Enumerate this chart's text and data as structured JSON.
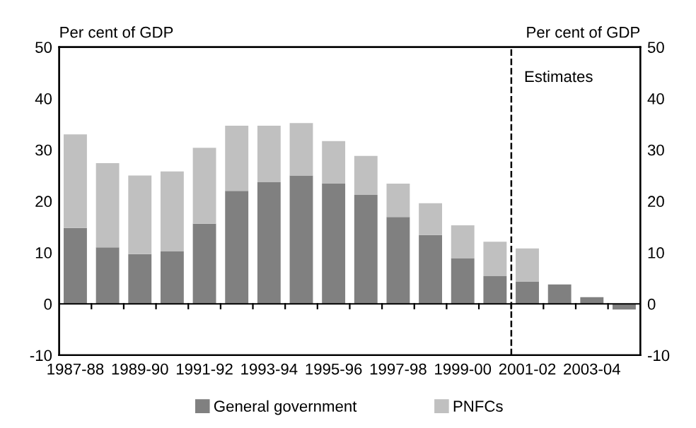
{
  "chart_data": {
    "type": "bar",
    "stacked": true,
    "ylabel": "Per cent of GDP",
    "y2label": "Per cent of GDP",
    "categories": [
      "1987-88",
      null,
      "1989-90",
      null,
      "1991-92",
      null,
      "1993-94",
      null,
      "1995-96",
      null,
      "1997-98",
      null,
      "1999-00",
      null,
      "2001-02",
      null,
      "2003-04",
      null
    ],
    "series": [
      {
        "name": "General government",
        "color": "#808080",
        "values": [
          14.8,
          11.0,
          9.7,
          10.2,
          15.6,
          22.0,
          23.7,
          25.0,
          23.4,
          21.2,
          16.9,
          13.4,
          8.9,
          5.4,
          4.3,
          3.8,
          1.3,
          -1.1
        ]
      },
      {
        "name": "PNFCs",
        "color": "#c0c0c0",
        "values": [
          18.2,
          16.4,
          15.3,
          15.6,
          14.8,
          12.7,
          11.0,
          10.2,
          8.3,
          7.6,
          6.5,
          6.2,
          6.4,
          6.7,
          6.5,
          null,
          null,
          null
        ]
      }
    ],
    "ylim": [
      -10,
      50
    ],
    "yticks": [
      -10,
      0,
      10,
      20,
      30,
      40,
      50
    ],
    "y2lim": [
      -10,
      50
    ],
    "y2ticks": [
      -10,
      0,
      10,
      20,
      30,
      40,
      50
    ],
    "annotations": [
      "Estimates"
    ],
    "grid": false,
    "legend": "bottom"
  }
}
